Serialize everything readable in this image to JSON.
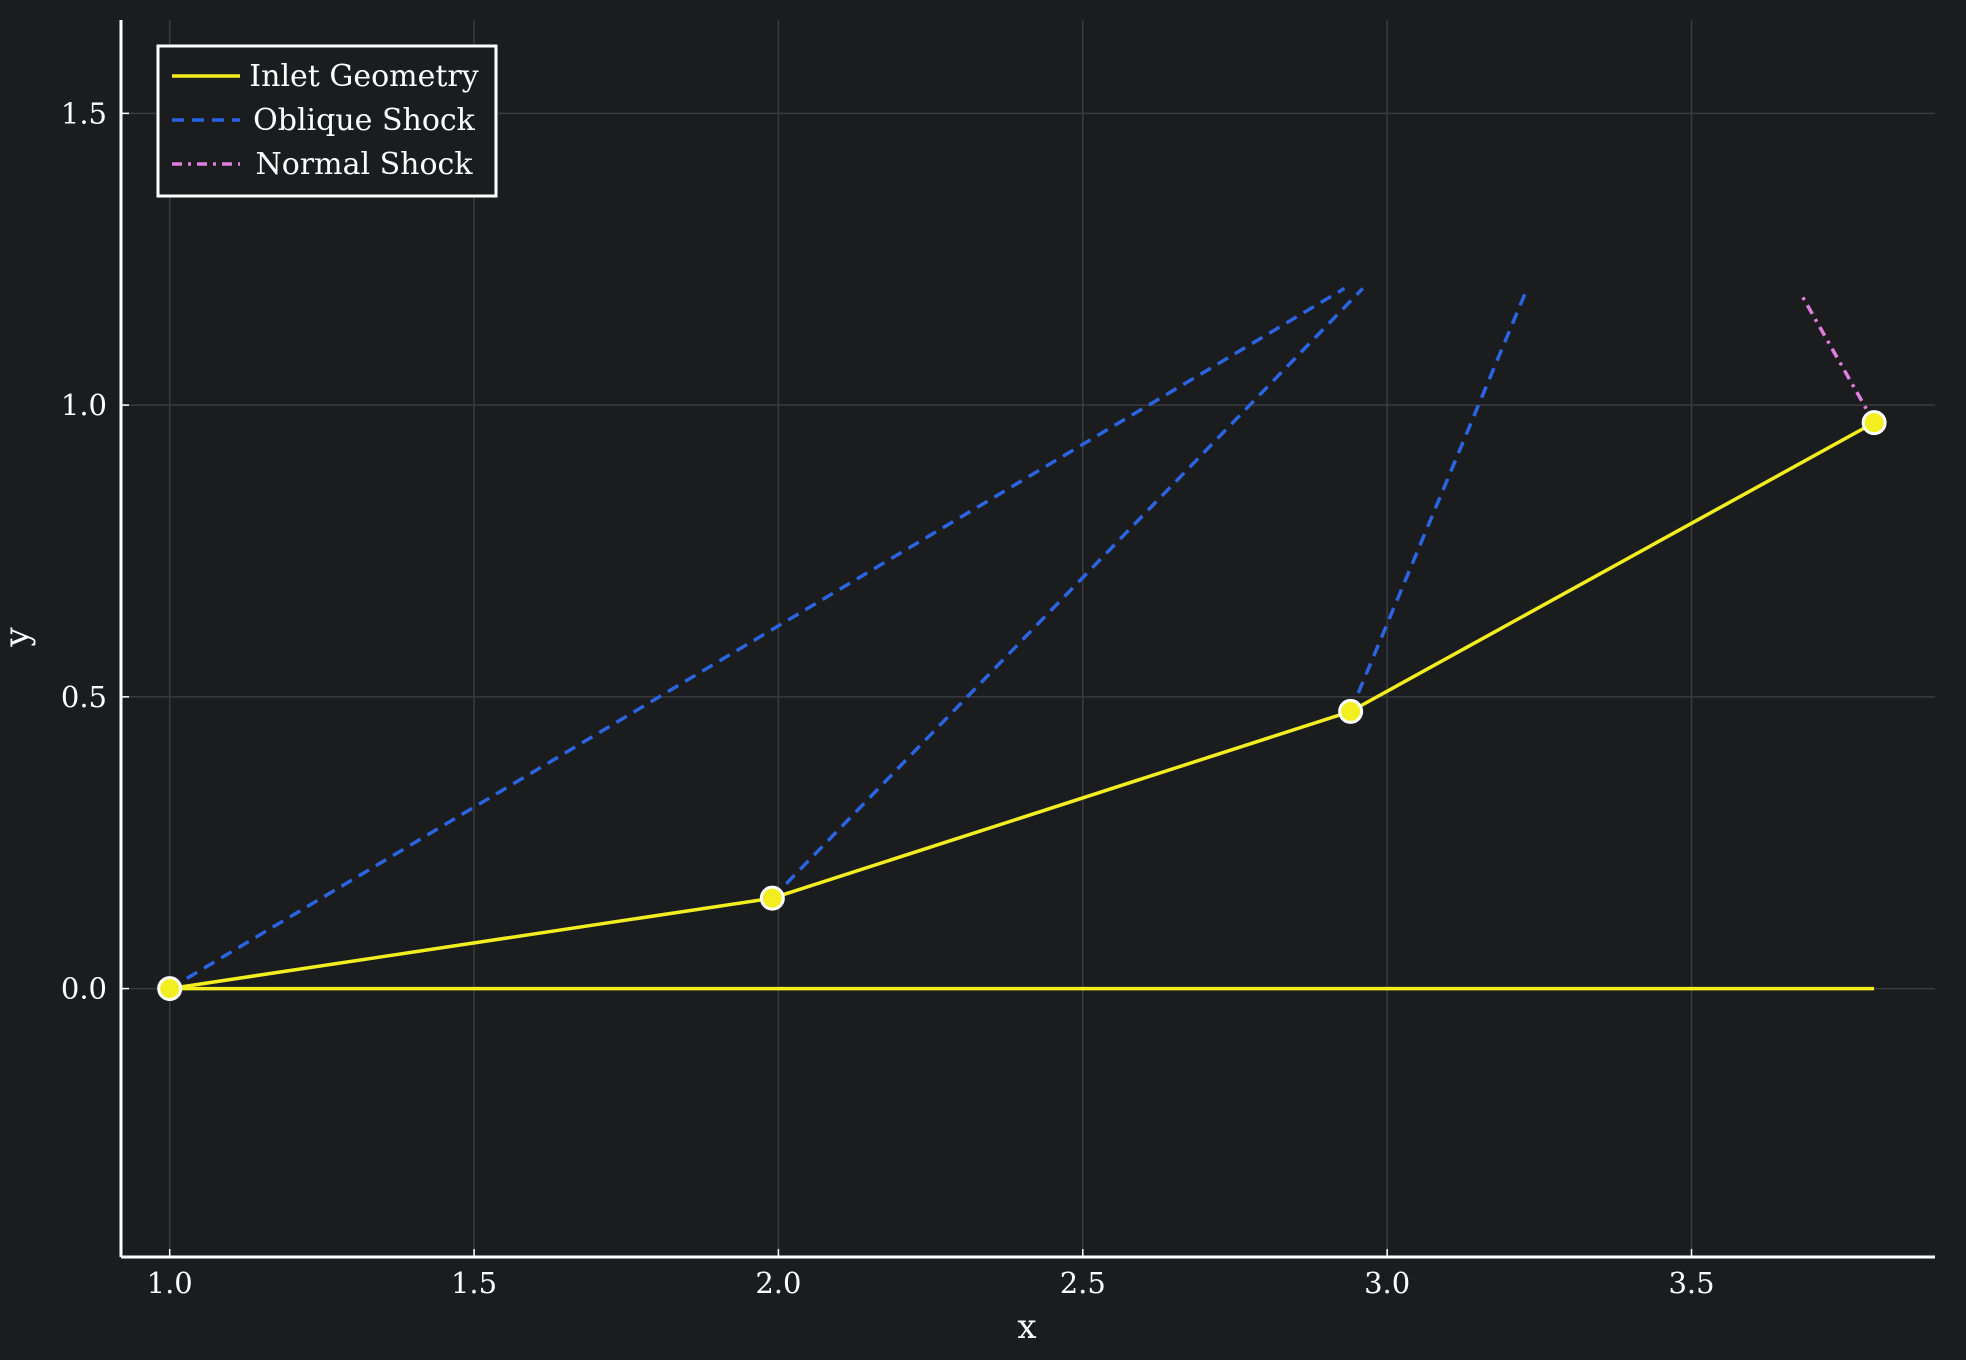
{
  "chart_data": {
    "type": "line",
    "title": "",
    "xlabel": "x",
    "ylabel": "y",
    "xlim": [
      0.92,
      3.9
    ],
    "ylim": [
      -0.46,
      1.66
    ],
    "grid": true,
    "legend_position": "top-left",
    "x_ticks": [
      1.0,
      1.5,
      2.0,
      2.5,
      3.0,
      3.5
    ],
    "x_tick_labels": [
      "1.0",
      "1.5",
      "2.0",
      "2.5",
      "3.0",
      "3.5"
    ],
    "y_ticks": [
      0.0,
      0.5,
      1.0,
      1.5
    ],
    "y_tick_labels": [
      "0.0",
      "0.5",
      "1.0",
      "1.5"
    ],
    "series": [
      {
        "name": "Inlet Geometry",
        "color": "#f2ee20",
        "style": "solid",
        "segments": [
          [
            [
              1.0,
              0.0
            ],
            [
              1.99,
              0.155
            ],
            [
              2.94,
              0.475
            ],
            [
              3.8,
              0.97
            ]
          ],
          [
            [
              1.0,
              0.0
            ],
            [
              3.8,
              0.0
            ]
          ]
        ],
        "markers": [
          [
            1.0,
            0.0
          ],
          [
            1.99,
            0.155
          ],
          [
            2.94,
            0.475
          ],
          [
            3.8,
            0.97
          ]
        ]
      },
      {
        "name": "Oblique Shock",
        "color": "#2a64e0",
        "style": "dashed",
        "segments": [
          [
            [
              1.0,
              0.0
            ],
            [
              2.93,
              1.2
            ]
          ],
          [
            [
              1.99,
              0.155
            ],
            [
              2.96,
              1.2
            ]
          ],
          [
            [
              2.94,
              0.475
            ],
            [
              3.23,
              1.2
            ]
          ]
        ]
      },
      {
        "name": "Normal Shock",
        "color": "#e07ee0",
        "style": "dashdot",
        "segments": [
          [
            [
              3.8,
              0.97
            ],
            [
              3.68,
              1.19
            ]
          ]
        ]
      }
    ]
  }
}
